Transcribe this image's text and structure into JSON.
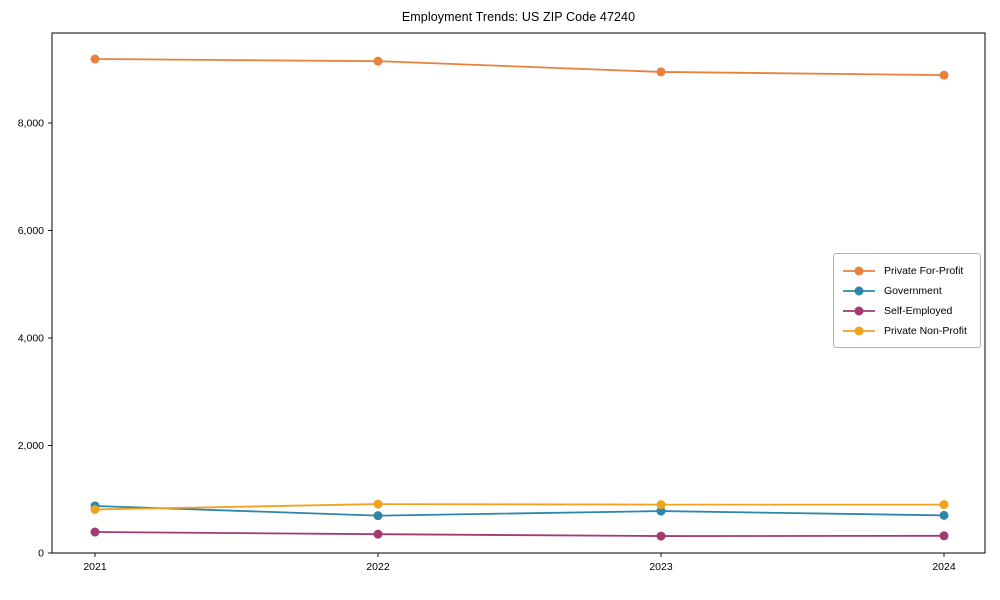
{
  "page": {
    "title": "Employment Trends: US ZIP Code 47240"
  },
  "chart_data": {
    "type": "line",
    "title": "Employment Trends: US ZIP Code 47240",
    "xlabel": "",
    "ylabel": "",
    "x": [
      2021,
      2022,
      2023,
      2024
    ],
    "x_tick_labels": [
      "2021",
      "2022",
      "2023",
      "2024"
    ],
    "y_ticks": [
      0,
      2000,
      4000,
      6000,
      8000
    ],
    "y_tick_labels": [
      "0",
      "2,000",
      "4,000",
      "6,000",
      "8,000"
    ],
    "ylim": [
      0,
      9674
    ],
    "grid": false,
    "legend_position": "center right",
    "axis_color": "#000000",
    "series": [
      {
        "name": "Private For-Profit",
        "color": "#e8813c",
        "values": [
          9190,
          9150,
          8950,
          8890
        ]
      },
      {
        "name": "Government",
        "color": "#2e86ab",
        "values": [
          875,
          695,
          780,
          700
        ]
      },
      {
        "name": "Self-Employed",
        "color": "#a23b72",
        "values": [
          390,
          350,
          315,
          320
        ]
      },
      {
        "name": "Private Non-Profit",
        "color": "#efa320",
        "values": [
          810,
          910,
          900,
          900
        ]
      }
    ]
  }
}
